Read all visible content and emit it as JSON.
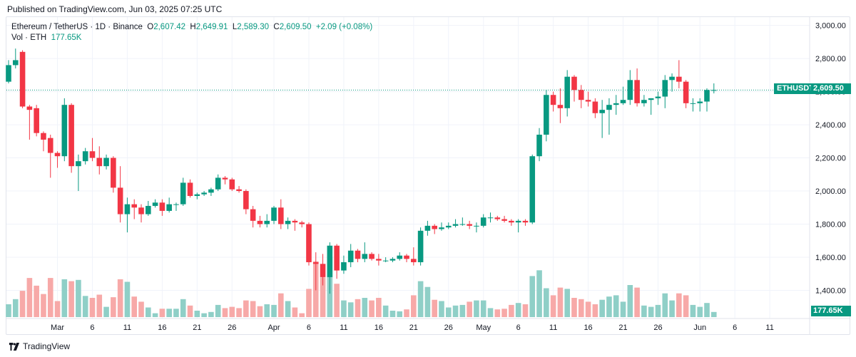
{
  "header": {
    "published": "Published on TradingView.com, Jun 03, 2025 07:25 UTC"
  },
  "legend": {
    "symbol": "Ethereum / TetherUS · 1D · Binance",
    "o_label": "O",
    "o": "2,607.42",
    "h_label": "H",
    "h": "2,649.91",
    "l_label": "L",
    "l": "2,589.30",
    "c_label": "C",
    "c": "2,609.50",
    "change": "+2.09 (+0.08%)",
    "vol_label": "Vol · ETH",
    "vol": "177.65K"
  },
  "footer": {
    "brand": "TradingView"
  },
  "colors": {
    "up": "#089981",
    "down": "#f23645",
    "vol_up": "#8fcfc7",
    "vol_down": "#f7a9a8",
    "grid": "#f0f3fa",
    "axis_text": "#131722"
  },
  "chart_data": {
    "type": "candlestick",
    "symbol": "ETHUSDT",
    "last_price": 2609.5,
    "last_price_label": "2,609.50",
    "last_volume_label": "177.65K",
    "ylim": [
      1230,
      3050
    ],
    "y_ticks": [
      1400,
      1600,
      1800,
      2000,
      2200,
      2400,
      2600,
      2800,
      3000
    ],
    "y_tick_labels": [
      "1,400.00",
      "1,600.00",
      "1,800.00",
      "2,000.00",
      "2,200.00",
      "2,400.00",
      "2,600.00",
      "2,800.00",
      "3,000.00"
    ],
    "x_ticks": [
      {
        "date": "2025-03-01",
        "label": "Mar"
      },
      {
        "date": "2025-03-06",
        "label": "6"
      },
      {
        "date": "2025-03-11",
        "label": "11"
      },
      {
        "date": "2025-03-16",
        "label": "16"
      },
      {
        "date": "2025-03-21",
        "label": "21"
      },
      {
        "date": "2025-03-26",
        "label": "26"
      },
      {
        "date": "2025-04-01",
        "label": "Apr"
      },
      {
        "date": "2025-04-06",
        "label": "6"
      },
      {
        "date": "2025-04-11",
        "label": "11"
      },
      {
        "date": "2025-04-16",
        "label": "16"
      },
      {
        "date": "2025-04-21",
        "label": "21"
      },
      {
        "date": "2025-04-26",
        "label": "26"
      },
      {
        "date": "2025-05-01",
        "label": "May"
      },
      {
        "date": "2025-05-06",
        "label": "6"
      },
      {
        "date": "2025-05-11",
        "label": "11"
      },
      {
        "date": "2025-05-16",
        "label": "16"
      },
      {
        "date": "2025-05-21",
        "label": "21"
      },
      {
        "date": "2025-05-26",
        "label": "26"
      },
      {
        "date": "2025-06-01",
        "label": "Jun"
      },
      {
        "date": "2025-06-06",
        "label": "6"
      },
      {
        "date": "2025-06-11",
        "label": "11"
      }
    ],
    "x_range": [
      "2025-02-22",
      "2025-06-14"
    ],
    "candles": [
      {
        "d": "2025-02-22",
        "o": 2660,
        "h": 2790,
        "l": 2650,
        "c": 2760,
        "v": 0.2
      },
      {
        "d": "2025-02-23",
        "o": 2760,
        "h": 2860,
        "l": 2740,
        "c": 2790,
        "v": 0.28
      },
      {
        "d": "2025-02-24",
        "o": 2840,
        "h": 2850,
        "l": 2500,
        "c": 2510,
        "v": 0.41
      },
      {
        "d": "2025-02-25",
        "o": 2510,
        "h": 2520,
        "l": 2310,
        "c": 2490,
        "v": 0.61
      },
      {
        "d": "2025-02-26",
        "o": 2500,
        "h": 2520,
        "l": 2330,
        "c": 2350,
        "v": 0.49
      },
      {
        "d": "2025-02-27",
        "o": 2350,
        "h": 2360,
        "l": 2240,
        "c": 2310,
        "v": 0.36
      },
      {
        "d": "2025-02-28",
        "o": 2320,
        "h": 2340,
        "l": 2080,
        "c": 2230,
        "v": 0.61
      },
      {
        "d": "2025-03-01",
        "o": 2230,
        "h": 2240,
        "l": 2140,
        "c": 2210,
        "v": 0.25
      },
      {
        "d": "2025-03-02",
        "o": 2210,
        "h": 2560,
        "l": 2180,
        "c": 2520,
        "v": 0.59
      },
      {
        "d": "2025-03-03",
        "o": 2520,
        "h": 2530,
        "l": 2110,
        "c": 2150,
        "v": 0.56
      },
      {
        "d": "2025-03-04",
        "o": 2150,
        "h": 2220,
        "l": 2000,
        "c": 2180,
        "v": 0.58
      },
      {
        "d": "2025-03-05",
        "o": 2180,
        "h": 2260,
        "l": 2160,
        "c": 2240,
        "v": 0.33
      },
      {
        "d": "2025-03-06",
        "o": 2240,
        "h": 2320,
        "l": 2180,
        "c": 2200,
        "v": 0.3
      },
      {
        "d": "2025-03-07",
        "o": 2200,
        "h": 2270,
        "l": 2100,
        "c": 2150,
        "v": 0.35
      },
      {
        "d": "2025-03-08",
        "o": 2150,
        "h": 2220,
        "l": 2130,
        "c": 2200,
        "v": 0.16
      },
      {
        "d": "2025-03-09",
        "o": 2200,
        "h": 2210,
        "l": 1990,
        "c": 2020,
        "v": 0.31
      },
      {
        "d": "2025-03-10",
        "o": 2020,
        "h": 2150,
        "l": 1810,
        "c": 1860,
        "v": 0.59
      },
      {
        "d": "2025-03-11",
        "o": 1860,
        "h": 1960,
        "l": 1750,
        "c": 1920,
        "v": 0.55
      },
      {
        "d": "2025-03-12",
        "o": 1920,
        "h": 1950,
        "l": 1830,
        "c": 1900,
        "v": 0.32
      },
      {
        "d": "2025-03-13",
        "o": 1900,
        "h": 1920,
        "l": 1810,
        "c": 1860,
        "v": 0.24
      },
      {
        "d": "2025-03-14",
        "o": 1860,
        "h": 1940,
        "l": 1850,
        "c": 1910,
        "v": 0.15
      },
      {
        "d": "2025-03-15",
        "o": 1910,
        "h": 1950,
        "l": 1900,
        "c": 1930,
        "v": 0.06
      },
      {
        "d": "2025-03-16",
        "o": 1930,
        "h": 1950,
        "l": 1850,
        "c": 1880,
        "v": 0.13
      },
      {
        "d": "2025-03-17",
        "o": 1880,
        "h": 1960,
        "l": 1870,
        "c": 1920,
        "v": 0.13
      },
      {
        "d": "2025-03-18",
        "o": 1920,
        "h": 1930,
        "l": 1880,
        "c": 1920,
        "v": 0.13
      },
      {
        "d": "2025-03-19",
        "o": 1920,
        "h": 2080,
        "l": 1910,
        "c": 2050,
        "v": 0.28
      },
      {
        "d": "2025-03-20",
        "o": 2050,
        "h": 2070,
        "l": 1960,
        "c": 1970,
        "v": 0.18
      },
      {
        "d": "2025-03-21",
        "o": 1970,
        "h": 1990,
        "l": 1950,
        "c": 1980,
        "v": 0.1
      },
      {
        "d": "2025-03-22",
        "o": 1980,
        "h": 2000,
        "l": 1970,
        "c": 1990,
        "v": 0.06
      },
      {
        "d": "2025-03-23",
        "o": 1990,
        "h": 2020,
        "l": 1970,
        "c": 2010,
        "v": 0.08
      },
      {
        "d": "2025-03-24",
        "o": 2010,
        "h": 2100,
        "l": 2000,
        "c": 2080,
        "v": 0.19
      },
      {
        "d": "2025-03-25",
        "o": 2080,
        "h": 2090,
        "l": 2040,
        "c": 2070,
        "v": 0.14
      },
      {
        "d": "2025-03-26",
        "o": 2070,
        "h": 2080,
        "l": 2000,
        "c": 2010,
        "v": 0.16
      },
      {
        "d": "2025-03-27",
        "o": 2010,
        "h": 2030,
        "l": 1990,
        "c": 2000,
        "v": 0.14
      },
      {
        "d": "2025-03-28",
        "o": 2000,
        "h": 2010,
        "l": 1860,
        "c": 1890,
        "v": 0.26
      },
      {
        "d": "2025-03-29",
        "o": 1890,
        "h": 1910,
        "l": 1780,
        "c": 1820,
        "v": 0.25
      },
      {
        "d": "2025-03-30",
        "o": 1820,
        "h": 1850,
        "l": 1780,
        "c": 1800,
        "v": 0.17
      },
      {
        "d": "2025-03-31",
        "o": 1800,
        "h": 1860,
        "l": 1780,
        "c": 1820,
        "v": 0.2
      },
      {
        "d": "2025-04-01",
        "o": 1820,
        "h": 1910,
        "l": 1800,
        "c": 1900,
        "v": 0.19
      },
      {
        "d": "2025-04-02",
        "o": 1900,
        "h": 1950,
        "l": 1770,
        "c": 1800,
        "v": 0.37
      },
      {
        "d": "2025-04-03",
        "o": 1800,
        "h": 1840,
        "l": 1770,
        "c": 1820,
        "v": 0.25
      },
      {
        "d": "2025-04-04",
        "o": 1820,
        "h": 1830,
        "l": 1760,
        "c": 1810,
        "v": 0.15
      },
      {
        "d": "2025-04-05",
        "o": 1810,
        "h": 1820,
        "l": 1780,
        "c": 1800,
        "v": 0.06
      },
      {
        "d": "2025-04-06",
        "o": 1800,
        "h": 1810,
        "l": 1550,
        "c": 1570,
        "v": 0.44
      },
      {
        "d": "2025-04-07",
        "o": 1570,
        "h": 1630,
        "l": 1400,
        "c": 1560,
        "v": 0.87
      },
      {
        "d": "2025-04-08",
        "o": 1560,
        "h": 1620,
        "l": 1430,
        "c": 1480,
        "v": 0.62
      },
      {
        "d": "2025-04-09",
        "o": 1480,
        "h": 1690,
        "l": 1380,
        "c": 1670,
        "v": 0.94
      },
      {
        "d": "2025-04-10",
        "o": 1670,
        "h": 1680,
        "l": 1470,
        "c": 1520,
        "v": 0.52
      },
      {
        "d": "2025-04-11",
        "o": 1520,
        "h": 1610,
        "l": 1500,
        "c": 1570,
        "v": 0.26
      },
      {
        "d": "2025-04-12",
        "o": 1570,
        "h": 1680,
        "l": 1540,
        "c": 1640,
        "v": 0.23
      },
      {
        "d": "2025-04-13",
        "o": 1640,
        "h": 1650,
        "l": 1570,
        "c": 1590,
        "v": 0.28
      },
      {
        "d": "2025-04-14",
        "o": 1590,
        "h": 1690,
        "l": 1570,
        "c": 1620,
        "v": 0.3
      },
      {
        "d": "2025-04-15",
        "o": 1620,
        "h": 1630,
        "l": 1580,
        "c": 1590,
        "v": 0.26
      },
      {
        "d": "2025-04-16",
        "o": 1590,
        "h": 1620,
        "l": 1550,
        "c": 1580,
        "v": 0.3
      },
      {
        "d": "2025-04-17",
        "o": 1580,
        "h": 1600,
        "l": 1570,
        "c": 1580,
        "v": 0.18
      },
      {
        "d": "2025-04-18",
        "o": 1580,
        "h": 1600,
        "l": 1570,
        "c": 1590,
        "v": 0.1
      },
      {
        "d": "2025-04-19",
        "o": 1590,
        "h": 1630,
        "l": 1580,
        "c": 1610,
        "v": 0.09
      },
      {
        "d": "2025-04-20",
        "o": 1610,
        "h": 1620,
        "l": 1570,
        "c": 1590,
        "v": 0.12
      },
      {
        "d": "2025-04-21",
        "o": 1590,
        "h": 1660,
        "l": 1550,
        "c": 1570,
        "v": 0.34
      },
      {
        "d": "2025-04-22",
        "o": 1570,
        "h": 1780,
        "l": 1550,
        "c": 1760,
        "v": 0.56
      },
      {
        "d": "2025-04-23",
        "o": 1760,
        "h": 1820,
        "l": 1730,
        "c": 1790,
        "v": 0.47
      },
      {
        "d": "2025-04-24",
        "o": 1790,
        "h": 1800,
        "l": 1740,
        "c": 1770,
        "v": 0.27
      },
      {
        "d": "2025-04-25",
        "o": 1770,
        "h": 1810,
        "l": 1760,
        "c": 1780,
        "v": 0.25
      },
      {
        "d": "2025-04-26",
        "o": 1780,
        "h": 1810,
        "l": 1770,
        "c": 1790,
        "v": 0.15
      },
      {
        "d": "2025-04-27",
        "o": 1790,
        "h": 1830,
        "l": 1780,
        "c": 1800,
        "v": 0.18
      },
      {
        "d": "2025-04-28",
        "o": 1800,
        "h": 1840,
        "l": 1790,
        "c": 1800,
        "v": 0.19
      },
      {
        "d": "2025-04-29",
        "o": 1800,
        "h": 1820,
        "l": 1770,
        "c": 1790,
        "v": 0.24
      },
      {
        "d": "2025-04-30",
        "o": 1790,
        "h": 1810,
        "l": 1750,
        "c": 1790,
        "v": 0.26
      },
      {
        "d": "2025-05-01",
        "o": 1790,
        "h": 1860,
        "l": 1780,
        "c": 1840,
        "v": 0.26
      },
      {
        "d": "2025-05-02",
        "o": 1840,
        "h": 1870,
        "l": 1810,
        "c": 1840,
        "v": 0.14
      },
      {
        "d": "2025-05-03",
        "o": 1840,
        "h": 1850,
        "l": 1820,
        "c": 1830,
        "v": 0.12
      },
      {
        "d": "2025-05-04",
        "o": 1830,
        "h": 1850,
        "l": 1810,
        "c": 1820,
        "v": 0.13
      },
      {
        "d": "2025-05-05",
        "o": 1820,
        "h": 1830,
        "l": 1790,
        "c": 1810,
        "v": 0.19
      },
      {
        "d": "2025-05-06",
        "o": 1810,
        "h": 1830,
        "l": 1750,
        "c": 1820,
        "v": 0.22
      },
      {
        "d": "2025-05-07",
        "o": 1820,
        "h": 1830,
        "l": 1790,
        "c": 1810,
        "v": 0.2
      },
      {
        "d": "2025-05-08",
        "o": 1810,
        "h": 2220,
        "l": 1800,
        "c": 2210,
        "v": 0.64
      },
      {
        "d": "2025-05-09",
        "o": 2210,
        "h": 2380,
        "l": 2180,
        "c": 2340,
        "v": 0.73
      },
      {
        "d": "2025-05-10",
        "o": 2340,
        "h": 2610,
        "l": 2300,
        "c": 2580,
        "v": 0.45
      },
      {
        "d": "2025-05-11",
        "o": 2580,
        "h": 2600,
        "l": 2480,
        "c": 2520,
        "v": 0.34
      },
      {
        "d": "2025-05-12",
        "o": 2520,
        "h": 2620,
        "l": 2410,
        "c": 2500,
        "v": 0.46
      },
      {
        "d": "2025-05-13",
        "o": 2500,
        "h": 2730,
        "l": 2450,
        "c": 2690,
        "v": 0.44
      },
      {
        "d": "2025-05-14",
        "o": 2690,
        "h": 2700,
        "l": 2540,
        "c": 2610,
        "v": 0.3
      },
      {
        "d": "2025-05-15",
        "o": 2610,
        "h": 2640,
        "l": 2500,
        "c": 2550,
        "v": 0.28
      },
      {
        "d": "2025-05-16",
        "o": 2550,
        "h": 2600,
        "l": 2510,
        "c": 2540,
        "v": 0.24
      },
      {
        "d": "2025-05-17",
        "o": 2540,
        "h": 2560,
        "l": 2440,
        "c": 2470,
        "v": 0.2
      },
      {
        "d": "2025-05-18",
        "o": 2470,
        "h": 2550,
        "l": 2320,
        "c": 2490,
        "v": 0.27
      },
      {
        "d": "2025-05-19",
        "o": 2490,
        "h": 2560,
        "l": 2340,
        "c": 2520,
        "v": 0.32
      },
      {
        "d": "2025-05-20",
        "o": 2520,
        "h": 2580,
        "l": 2460,
        "c": 2530,
        "v": 0.34
      },
      {
        "d": "2025-05-21",
        "o": 2530,
        "h": 2630,
        "l": 2520,
        "c": 2550,
        "v": 0.24
      },
      {
        "d": "2025-05-22",
        "o": 2550,
        "h": 2730,
        "l": 2520,
        "c": 2670,
        "v": 0.5
      },
      {
        "d": "2025-05-23",
        "o": 2670,
        "h": 2740,
        "l": 2510,
        "c": 2530,
        "v": 0.46
      },
      {
        "d": "2025-05-24",
        "o": 2530,
        "h": 2580,
        "l": 2510,
        "c": 2550,
        "v": 0.18
      },
      {
        "d": "2025-05-25",
        "o": 2550,
        "h": 2560,
        "l": 2460,
        "c": 2560,
        "v": 0.16
      },
      {
        "d": "2025-05-26",
        "o": 2560,
        "h": 2600,
        "l": 2520,
        "c": 2570,
        "v": 0.19
      },
      {
        "d": "2025-05-27",
        "o": 2570,
        "h": 2700,
        "l": 2500,
        "c": 2670,
        "v": 0.37
      },
      {
        "d": "2025-05-28",
        "o": 2670,
        "h": 2710,
        "l": 2600,
        "c": 2690,
        "v": 0.26
      },
      {
        "d": "2025-05-29",
        "o": 2690,
        "h": 2790,
        "l": 2620,
        "c": 2660,
        "v": 0.37
      },
      {
        "d": "2025-05-30",
        "o": 2660,
        "h": 2670,
        "l": 2500,
        "c": 2530,
        "v": 0.34
      },
      {
        "d": "2025-05-31",
        "o": 2530,
        "h": 2560,
        "l": 2480,
        "c": 2530,
        "v": 0.19
      },
      {
        "d": "2025-06-01",
        "o": 2530,
        "h": 2560,
        "l": 2480,
        "c": 2540,
        "v": 0.16
      },
      {
        "d": "2025-06-02",
        "o": 2540,
        "h": 2620,
        "l": 2480,
        "c": 2610,
        "v": 0.22
      },
      {
        "d": "2025-06-03",
        "o": 2607.42,
        "h": 2649.91,
        "l": 2589.3,
        "c": 2609.5,
        "v": 0.08
      }
    ]
  }
}
